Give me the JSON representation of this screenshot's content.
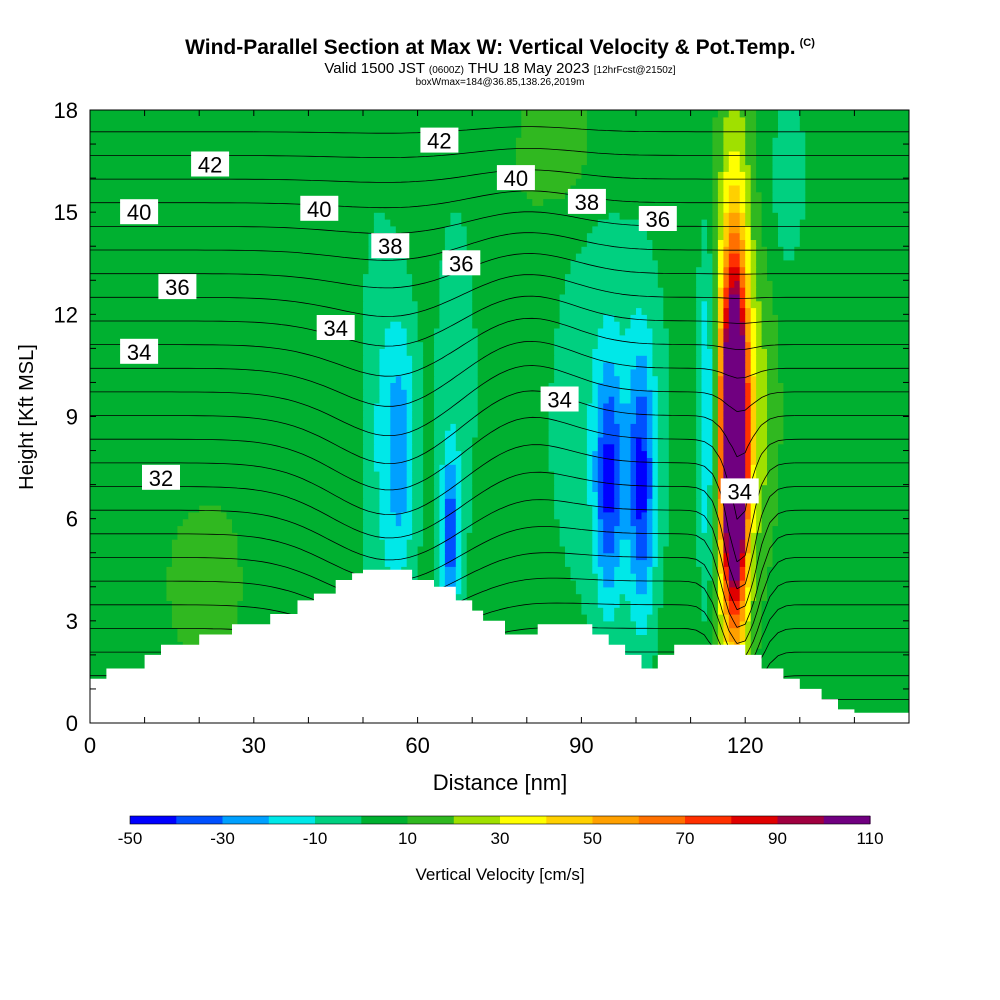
{
  "chart_data": {
    "type": "contour",
    "title": "Wind-Parallel Section at Max W: Vertical Velocity & Pot.Temp.",
    "title_mark": "(C)",
    "subtitle_main": "Valid 1500 JST",
    "subtitle_utc": "(0600Z)",
    "subtitle_date": "THU 18 May 2023",
    "subtitle_fcst": "[12hrFcst@2150z]",
    "subtitle2": "boxWmax=184@36.85,138.26,2019m",
    "xlabel": "Distance [nm]",
    "ylabel": "Height [Kft MSL]",
    "xlim": [
      0,
      150
    ],
    "ylim": [
      0,
      18
    ],
    "x_ticks": [
      0,
      30,
      60,
      90,
      120
    ],
    "y_ticks": [
      0,
      3,
      6,
      9,
      12,
      15,
      18
    ],
    "colorbar": {
      "label": "Vertical Velocity [cm/s]",
      "tick_labels": [
        -50,
        -30,
        -10,
        10,
        30,
        50,
        70,
        90,
        110
      ],
      "colors": [
        "#0000ff",
        "#0050ff",
        "#00a0ff",
        "#00e8e8",
        "#00d080",
        "#00b030",
        "#30b820",
        "#a0e000",
        "#ffff00",
        "#ffd000",
        "#ffa000",
        "#ff7000",
        "#ff3000",
        "#e00000",
        "#a00040",
        "#700080"
      ]
    },
    "contour_labels": [
      {
        "text": "42",
        "x": 22,
        "y": 16.4
      },
      {
        "text": "42",
        "x": 64,
        "y": 17.1
      },
      {
        "text": "40",
        "x": 9,
        "y": 15.0
      },
      {
        "text": "40",
        "x": 42,
        "y": 15.1
      },
      {
        "text": "40",
        "x": 78,
        "y": 16.0
      },
      {
        "text": "38",
        "x": 55,
        "y": 14.0
      },
      {
        "text": "38",
        "x": 91,
        "y": 15.3
      },
      {
        "text": "36",
        "x": 16,
        "y": 12.8
      },
      {
        "text": "36",
        "x": 68,
        "y": 13.5
      },
      {
        "text": "36",
        "x": 104,
        "y": 14.8
      },
      {
        "text": "34",
        "x": 9,
        "y": 10.9
      },
      {
        "text": "34",
        "x": 45,
        "y": 11.6
      },
      {
        "text": "34",
        "x": 86,
        "y": 9.5
      },
      {
        "text": "34",
        "x": 119,
        "y": 6.8
      },
      {
        "text": "32",
        "x": 13,
        "y": 7.2
      }
    ],
    "terrain": [
      [
        0,
        1.3
      ],
      [
        3,
        1.6
      ],
      [
        10,
        2.0
      ],
      [
        13,
        2.3
      ],
      [
        20,
        2.6
      ],
      [
        26,
        2.9
      ],
      [
        33,
        3.2
      ],
      [
        38,
        3.6
      ],
      [
        41,
        3.8
      ],
      [
        45,
        4.2
      ],
      [
        48,
        4.4
      ],
      [
        50,
        4.5
      ],
      [
        55,
        4.5
      ],
      [
        59,
        4.2
      ],
      [
        63,
        4.0
      ],
      [
        67,
        3.6
      ],
      [
        70,
        3.3
      ],
      [
        72,
        3.0
      ],
      [
        76,
        2.6
      ],
      [
        80,
        2.6
      ],
      [
        82,
        2.9
      ],
      [
        88,
        2.9
      ],
      [
        92,
        2.6
      ],
      [
        95,
        2.3
      ],
      [
        98,
        2.0
      ],
      [
        101,
        1.6
      ],
      [
        104,
        2.0
      ],
      [
        107,
        2.3
      ],
      [
        110,
        2.3
      ],
      [
        118,
        2.3
      ],
      [
        120,
        2.0
      ],
      [
        123,
        1.6
      ],
      [
        127,
        1.3
      ],
      [
        130,
        1.0
      ],
      [
        134,
        0.7
      ],
      [
        137,
        0.4
      ],
      [
        140,
        0.3
      ],
      [
        150,
        0.3
      ]
    ],
    "velocity_cells": [
      {
        "x": 12,
        "y": 12,
        "rx": 3.5,
        "ry": 7,
        "w": 3
      },
      {
        "x": 26,
        "y": 13,
        "rx": 3.5,
        "ry": 7,
        "w": 3
      },
      {
        "x": 40,
        "y": 14,
        "rx": 4.5,
        "ry": 5,
        "w": 3
      },
      {
        "x": 80,
        "y": 14,
        "rx": 4,
        "ry": 4.5,
        "w": 3
      },
      {
        "x": 42,
        "y": 8,
        "rx": 7,
        "ry": 2.8,
        "w": 3
      },
      {
        "x": 137,
        "y": 10,
        "rx": 7,
        "ry": 3.5,
        "w": 4
      },
      {
        "x": 21,
        "y": 4,
        "rx": 6,
        "ry": 2.2,
        "w": 12
      },
      {
        "x": 53,
        "y": 8.5,
        "rx": 4,
        "ry": 7,
        "w": -14
      },
      {
        "x": 67,
        "y": 10,
        "rx": 5,
        "ry": 7,
        "w": -10
      },
      {
        "x": 95,
        "y": 9,
        "rx": 12,
        "ry": 6.5,
        "w": -14
      },
      {
        "x": 57,
        "y": 8,
        "rx": 3,
        "ry": 4,
        "w": -28
      },
      {
        "x": 66,
        "y": 5.5,
        "rx": 1.7,
        "ry": 2.5,
        "w": -38
      },
      {
        "x": 95,
        "y": 7,
        "rx": 2.5,
        "ry": 3.5,
        "w": -38
      },
      {
        "x": 101,
        "y": 7,
        "rx": 2.5,
        "ry": 4,
        "w": -40
      },
      {
        "x": 113,
        "y": 9,
        "rx": 1.5,
        "ry": 5,
        "w": -30
      },
      {
        "x": 128,
        "y": 16,
        "rx": 3,
        "ry": 2.5,
        "w": -16
      },
      {
        "x": 86,
        "y": 17,
        "rx": 6,
        "ry": 1.8,
        "w": 14
      },
      {
        "x": 123,
        "y": 9,
        "rx": 3,
        "ry": 4,
        "w": 15
      },
      {
        "x": 118,
        "y": 9.5,
        "rx": 3.2,
        "ry": 8,
        "w": 40
      },
      {
        "x": 118,
        "y": 8.5,
        "rx": 2.5,
        "ry": 5.5,
        "w": 75
      },
      {
        "x": 118,
        "y": 8,
        "rx": 1.8,
        "ry": 3.5,
        "w": 100
      }
    ]
  }
}
